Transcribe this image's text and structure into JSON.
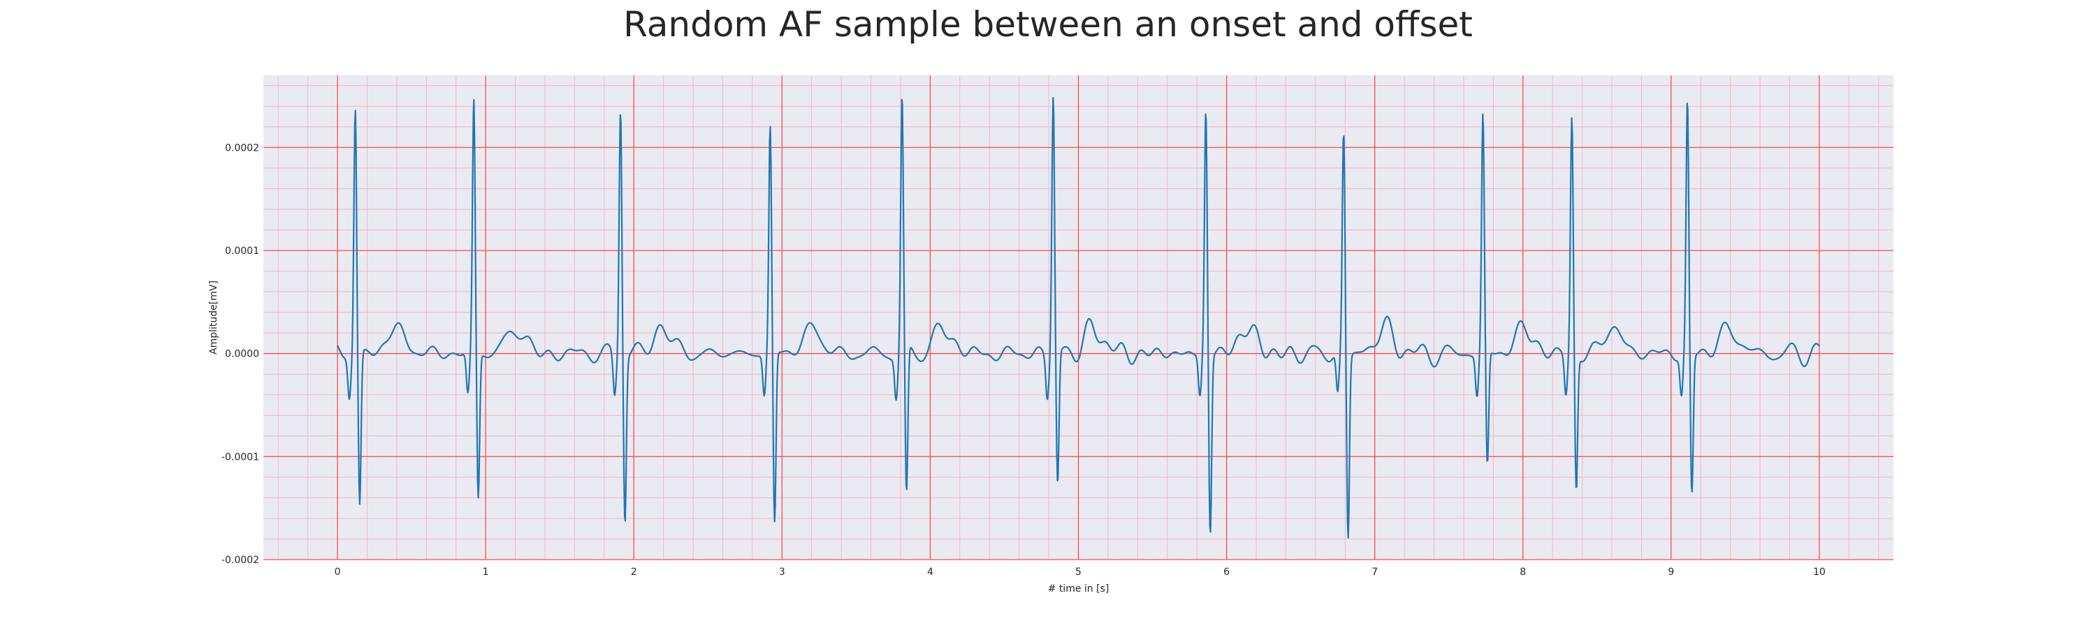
{
  "chart_data": {
    "type": "line",
    "title": "Random AF sample between an onset and offset",
    "xlabel": "# time in [s]",
    "ylabel": "Amplitude[mV]",
    "xlim": [
      -0.5,
      10.5
    ],
    "ylim": [
      -0.0002,
      0.00027
    ],
    "x_ticks": [
      0,
      1,
      2,
      3,
      4,
      5,
      6,
      7,
      8,
      9,
      10
    ],
    "x_tick_labels": [
      "0",
      "1",
      "2",
      "3",
      "4",
      "5",
      "6",
      "7",
      "8",
      "9",
      "10"
    ],
    "y_ticks": [
      -0.0002,
      -0.0001,
      0.0,
      0.0001,
      0.0002
    ],
    "y_tick_labels": [
      "-0.0002",
      "-0.0001",
      "0.0000",
      "0.0001",
      "0.0002"
    ],
    "grid": true,
    "minor_grid": true,
    "legend": false,
    "background_color": "#eaeaf2",
    "major_grid_color": "#ff4d4d",
    "minor_grid_color": "#f3b7c4",
    "series": [
      {
        "color": "#1f77b4",
        "x_start": 0.0,
        "x_end": 10.0,
        "baseline_noise_amplitude": 2e-05,
        "beats": [
          {
            "t": 0.12,
            "r_peak": 0.00024,
            "s_trough": -0.000148
          },
          {
            "t": 0.92,
            "r_peak": 0.000245,
            "s_trough": -0.000142
          },
          {
            "t": 1.91,
            "r_peak": 0.000243,
            "s_trough": -0.000159
          },
          {
            "t": 2.92,
            "r_peak": 0.00022,
            "s_trough": -0.000166
          },
          {
            "t": 3.81,
            "r_peak": 0.000248,
            "s_trough": -0.000144
          },
          {
            "t": 4.83,
            "r_peak": 0.000254,
            "s_trough": -0.000128
          },
          {
            "t": 5.86,
            "r_peak": 0.000237,
            "s_trough": -0.000174
          },
          {
            "t": 6.79,
            "r_peak": 0.000214,
            "s_trough": -0.000179
          },
          {
            "t": 7.73,
            "r_peak": 0.000231,
            "s_trough": -0.000111
          },
          {
            "t": 8.33,
            "r_peak": 0.000228,
            "s_trough": -0.000133
          },
          {
            "t": 9.11,
            "r_peak": 0.000243,
            "s_trough": -0.000137
          }
        ]
      }
    ]
  }
}
